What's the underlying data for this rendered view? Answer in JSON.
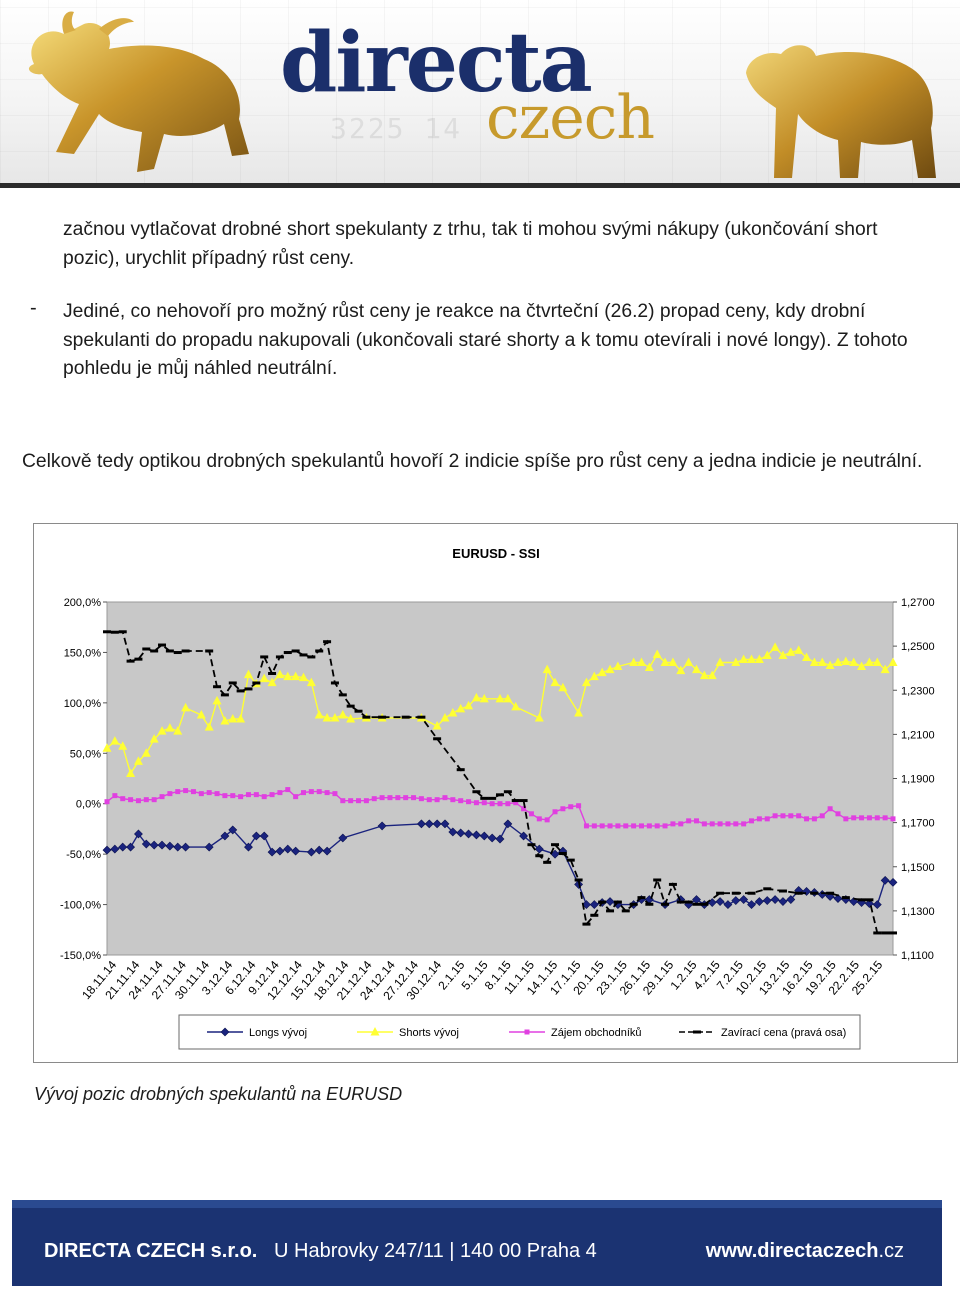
{
  "header": {
    "logo_main": "directa",
    "logo_sub": "czech",
    "ticker": "3225 14"
  },
  "text": {
    "p1": "začnou vytlačovat drobné short spekulanty z trhu, tak ti mohou svými nákupy (ukončování short pozic), urychlit případný růst ceny.",
    "dash": "-",
    "p2": "Jediné, co nehovoří pro možný růst ceny je reakce na čtvrteční (26.2) propad ceny, kdy drobní spekulanti do propadu nakupovali (ukončovali staré shorty a k tomu otevírali i nové longy). Z tohoto pohledu je můj náhled neutrální.",
    "p3": "Celkově tedy optikou drobných spekulantů hovoří 2 indicie spíše pro růst ceny a jedna indicie je neutrální."
  },
  "caption": "Vývoj pozic drobných spekulantů na EURUSD",
  "footer": {
    "company": "DIRECTA CZECH s.r.o.",
    "address": "U Habrovky 247/11 | 140 00 Praha 4",
    "web_main": "www.directaczech",
    "web_tld": ".cz",
    "bg_color": "#1b3372"
  },
  "chart_data": {
    "type": "line",
    "title": "EURUSD - SSI",
    "y_left": {
      "range": [
        -150,
        200
      ],
      "ticks": [
        "200,0%",
        "150,0%",
        "100,0%",
        "50,0%",
        "0,0%",
        "-50,0%",
        "-100,0%",
        "-150,0%"
      ]
    },
    "y_right": {
      "range": [
        1.11,
        1.27
      ],
      "ticks": [
        "1,2700",
        "1,2500",
        "1,2300",
        "1,2100",
        "1,1900",
        "1,1700",
        "1,1500",
        "1,1300",
        "1,1100"
      ]
    },
    "x_labels": [
      "18.11.14",
      "21.11.14",
      "24.11.14",
      "27.11.14",
      "30.11.14",
      "3.12.14",
      "6.12.14",
      "9.12.14",
      "12.12.14",
      "15.12.14",
      "18.12.14",
      "21.12.14",
      "24.12.14",
      "27.12.14",
      "30.12.14",
      "2.1.15",
      "5.1.15",
      "8.1.15",
      "11.1.15",
      "14.1.15",
      "17.1.15",
      "20.1.15",
      "23.1.15",
      "26.1.15",
      "29.1.15",
      "1.2.15",
      "4.2.15",
      "7.2.15",
      "10.2.15",
      "13.2.15",
      "16.2.15",
      "19.2.15",
      "22.2.15",
      "25.2.15"
    ],
    "x_range": [
      0,
      100
    ],
    "grid": false,
    "legend_position": "bottom",
    "plot_bg": "#c8c8c8",
    "series": [
      {
        "name": "Longs vývoj",
        "axis": "left",
        "color": "#1a237e",
        "marker": "diamond",
        "x": [
          0,
          1,
          2,
          3,
          4,
          5,
          6,
          7,
          8,
          9,
          10,
          13,
          15,
          16,
          18,
          19,
          20,
          21,
          22,
          23,
          24,
          26,
          27,
          28,
          30,
          35,
          40,
          41,
          42,
          43,
          44,
          45,
          46,
          47,
          48,
          49,
          50,
          51,
          53,
          55,
          57,
          58,
          60,
          61,
          62,
          63,
          64,
          65,
          67,
          68,
          69,
          71,
          73,
          74,
          75,
          76,
          77,
          78,
          79,
          80,
          81,
          82,
          83,
          84,
          85,
          86,
          87,
          88,
          89,
          90,
          91,
          92,
          93,
          94,
          95,
          96,
          97,
          98,
          99,
          100
        ],
        "y": [
          -46,
          -45,
          -43,
          -43,
          -30,
          -40,
          -41,
          -41,
          -42,
          -43,
          -43,
          -43,
          -32,
          -26,
          -43,
          -32,
          -32,
          -48,
          -47,
          -45,
          -47,
          -48,
          -46,
          -47,
          -34,
          -22,
          -20,
          -20,
          -20,
          -20,
          -28,
          -29,
          -30,
          -31,
          -32,
          -34,
          -35,
          -20,
          -32,
          -45,
          -50,
          -47,
          -80,
          -100,
          -100,
          -98,
          -97,
          -100,
          -100,
          -95,
          -95,
          -100,
          -95,
          -100,
          -95,
          -100,
          -98,
          -97,
          -100,
          -96,
          -95,
          -100,
          -97,
          -96,
          -95,
          -97,
          -95,
          -86,
          -87,
          -88,
          -90,
          -92,
          -94,
          -95,
          -97,
          -98,
          -99,
          -100,
          -76,
          -78
        ]
      },
      {
        "name": "Shorts vývoj",
        "axis": "left",
        "color": "#ffff33",
        "marker": "triangle",
        "x": [
          0,
          1,
          2,
          3,
          4,
          5,
          6,
          7,
          8,
          9,
          10,
          12,
          13,
          14,
          15,
          16,
          17,
          18,
          19,
          20,
          21,
          22,
          23,
          24,
          25,
          26,
          27,
          28,
          29,
          30,
          31,
          33,
          35,
          40,
          42,
          43,
          44,
          45,
          46,
          47,
          48,
          50,
          51,
          52,
          55,
          56,
          57,
          58,
          60,
          61,
          62,
          63,
          64,
          65,
          67,
          68,
          69,
          70,
          71,
          72,
          73,
          74,
          75,
          76,
          77,
          78,
          80,
          81,
          82,
          83,
          84,
          85,
          86,
          87,
          88,
          89,
          90,
          91,
          92,
          93,
          94,
          95,
          96,
          97,
          98,
          99,
          100
        ],
        "y": [
          55,
          62,
          57,
          30,
          42,
          50,
          64,
          72,
          75,
          72,
          95,
          88,
          76,
          102,
          82,
          84,
          84,
          128,
          119,
          124,
          120,
          128,
          126,
          126,
          125,
          120,
          88,
          85,
          85,
          88,
          84,
          85,
          85,
          85,
          77,
          85,
          90,
          94,
          97,
          105,
          104,
          104,
          104,
          96,
          85,
          133,
          120,
          115,
          90,
          120,
          126,
          130,
          133,
          136,
          140,
          140,
          135,
          148,
          140,
          140,
          132,
          140,
          133,
          127,
          127,
          140,
          140,
          143,
          143,
          143,
          147,
          155,
          147,
          150,
          152,
          145,
          140,
          140,
          137,
          140,
          141,
          140,
          136,
          140,
          140,
          133,
          140
        ]
      },
      {
        "name": "Zájem obchodníků",
        "axis": "left",
        "color": "#e040e0",
        "marker": "square",
        "x": [
          0,
          1,
          2,
          3,
          4,
          5,
          6,
          7,
          8,
          9,
          10,
          11,
          12,
          13,
          14,
          15,
          16,
          17,
          18,
          19,
          20,
          21,
          22,
          23,
          24,
          25,
          26,
          27,
          28,
          29,
          30,
          31,
          32,
          33,
          34,
          35,
          36,
          37,
          38,
          39,
          40,
          41,
          42,
          43,
          44,
          45,
          46,
          47,
          48,
          49,
          50,
          51,
          52,
          53,
          54,
          55,
          56,
          57,
          58,
          59,
          60,
          61,
          62,
          63,
          64,
          65,
          66,
          67,
          68,
          69,
          70,
          71,
          72,
          73,
          74,
          75,
          76,
          77,
          78,
          79,
          80,
          81,
          82,
          83,
          84,
          85,
          86,
          87,
          88,
          89,
          90,
          91,
          92,
          93,
          94,
          95,
          96,
          97,
          98,
          99,
          100
        ],
        "y": [
          2,
          8,
          5,
          4,
          3,
          4,
          4,
          7,
          10,
          12,
          13,
          12,
          10,
          11,
          10,
          8,
          8,
          7,
          9,
          9,
          7,
          9,
          11,
          14,
          7,
          11,
          12,
          12,
          11,
          10,
          3,
          3,
          3,
          3,
          5,
          6,
          6,
          6,
          6,
          6,
          5,
          4,
          4,
          6,
          4,
          3,
          2,
          1,
          1,
          0,
          0,
          0,
          1,
          -5,
          -10,
          -15,
          -16,
          -8,
          -5,
          -3,
          -2,
          -22,
          -22,
          -22,
          -22,
          -22,
          -22,
          -22,
          -22,
          -22,
          -22,
          -22,
          -20,
          -20,
          -17,
          -17,
          -20,
          -20,
          -20,
          -20,
          -20,
          -20,
          -17,
          -15,
          -15,
          -12,
          -12,
          -12,
          -12,
          -15,
          -15,
          -12,
          -5,
          -10,
          -15,
          -14,
          -14,
          -14,
          -14,
          -14,
          -15
        ]
      },
      {
        "name": "Zavírací cena (pravá osa)",
        "axis": "right",
        "color": "#000000",
        "marker": "dash",
        "style": "dashed",
        "x": [
          0,
          1,
          2,
          3,
          4,
          5,
          6,
          7,
          8,
          9,
          10,
          13,
          14,
          15,
          16,
          17,
          18,
          19,
          20,
          21,
          22,
          23,
          24,
          25,
          26,
          27,
          28,
          29,
          30,
          31,
          32,
          33,
          35,
          38,
          40,
          42,
          45,
          47,
          48,
          49,
          50,
          51,
          52,
          53,
          54,
          55,
          56,
          57,
          58,
          59,
          60,
          61,
          62,
          63,
          64,
          65,
          66,
          67,
          68,
          69,
          70,
          71,
          72,
          73,
          74,
          75,
          76,
          78,
          80,
          82,
          84,
          86,
          88,
          90,
          92,
          94,
          96,
          97,
          98,
          99,
          100
        ],
        "y": [
          1.2565,
          1.2563,
          1.2565,
          1.2432,
          1.2441,
          1.2487,
          1.2478,
          1.2505,
          1.2478,
          1.2471,
          1.2478,
          1.2478,
          1.2316,
          1.2279,
          1.2333,
          1.2297,
          1.2306,
          1.2333,
          1.2451,
          1.2376,
          1.2451,
          1.2471,
          1.2478,
          1.246,
          1.2451,
          1.2478,
          1.252,
          1.2333,
          1.2279,
          1.2228,
          1.2205,
          1.2178,
          1.2178,
          1.2178,
          1.2178,
          1.208,
          1.194,
          1.184,
          1.181,
          1.181,
          1.1826,
          1.184,
          1.18,
          1.18,
          1.16,
          1.155,
          1.152,
          1.16,
          1.156,
          1.153,
          1.144,
          1.124,
          1.128,
          1.134,
          1.13,
          1.134,
          1.13,
          1.133,
          1.136,
          1.133,
          1.144,
          1.133,
          1.142,
          1.134,
          1.134,
          1.133,
          1.133,
          1.138,
          1.138,
          1.138,
          1.14,
          1.139,
          1.138,
          1.138,
          1.138,
          1.136,
          1.135,
          1.135,
          1.12,
          1.12,
          1.12
        ]
      }
    ]
  }
}
